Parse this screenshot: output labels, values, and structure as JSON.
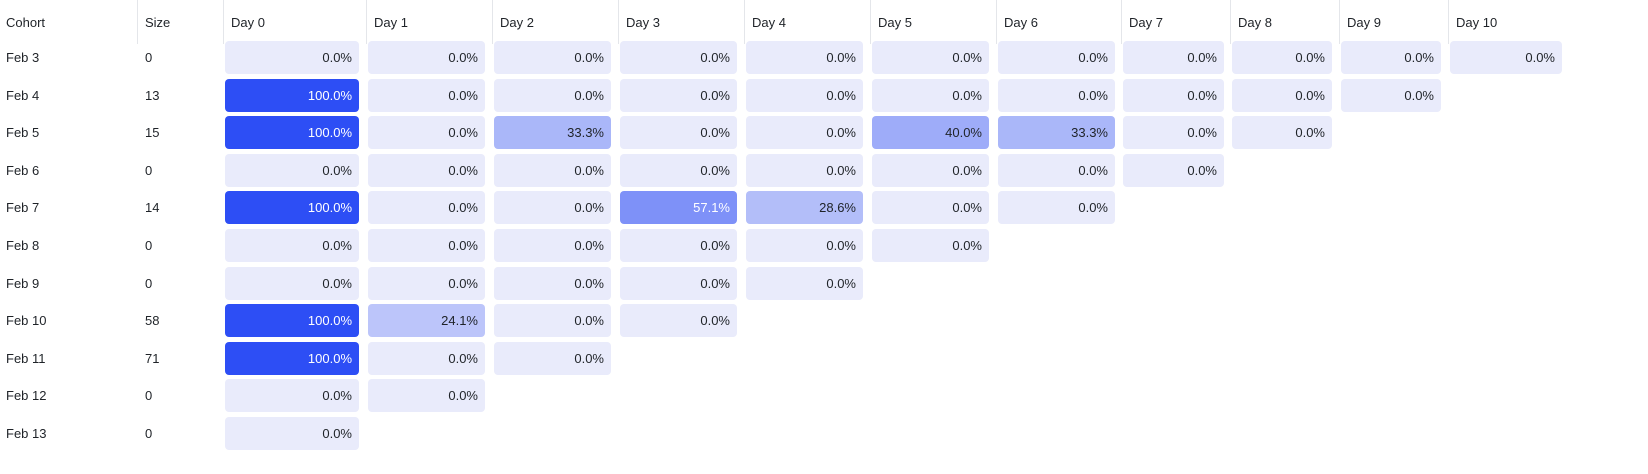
{
  "columns": [
    "Cohort",
    "Size",
    "Day 0",
    "Day 1",
    "Day 2",
    "Day 3",
    "Day 4",
    "Day 5",
    "Day 6",
    "Day 7",
    "Day 8",
    "Day 9",
    "Day 10"
  ],
  "rows": [
    {
      "cohort": "Feb 3",
      "size": "0",
      "values": [
        "0.0%",
        "0.0%",
        "0.0%",
        "0.0%",
        "0.0%",
        "0.0%",
        "0.0%",
        "0.0%",
        "0.0%",
        "0.0%",
        "0.0%"
      ]
    },
    {
      "cohort": "Feb 4",
      "size": "13",
      "values": [
        "100.0%",
        "0.0%",
        "0.0%",
        "0.0%",
        "0.0%",
        "0.0%",
        "0.0%",
        "0.0%",
        "0.0%",
        "0.0%"
      ]
    },
    {
      "cohort": "Feb 5",
      "size": "15",
      "values": [
        "100.0%",
        "0.0%",
        "33.3%",
        "0.0%",
        "0.0%",
        "40.0%",
        "33.3%",
        "0.0%",
        "0.0%"
      ]
    },
    {
      "cohort": "Feb 6",
      "size": "0",
      "values": [
        "0.0%",
        "0.0%",
        "0.0%",
        "0.0%",
        "0.0%",
        "0.0%",
        "0.0%",
        "0.0%"
      ]
    },
    {
      "cohort": "Feb 7",
      "size": "14",
      "values": [
        "100.0%",
        "0.0%",
        "0.0%",
        "57.1%",
        "28.6%",
        "0.0%",
        "0.0%"
      ]
    },
    {
      "cohort": "Feb 8",
      "size": "0",
      "values": [
        "0.0%",
        "0.0%",
        "0.0%",
        "0.0%",
        "0.0%",
        "0.0%"
      ]
    },
    {
      "cohort": "Feb 9",
      "size": "0",
      "values": [
        "0.0%",
        "0.0%",
        "0.0%",
        "0.0%",
        "0.0%"
      ]
    },
    {
      "cohort": "Feb 10",
      "size": "58",
      "values": [
        "100.0%",
        "24.1%",
        "0.0%",
        "0.0%"
      ]
    },
    {
      "cohort": "Feb 11",
      "size": "71",
      "values": [
        "100.0%",
        "0.0%",
        "0.0%"
      ]
    },
    {
      "cohort": "Feb 12",
      "size": "0",
      "values": [
        "0.0%",
        "0.0%"
      ]
    },
    {
      "cohort": "Feb 13",
      "size": "0",
      "values": [
        "0.0%"
      ]
    }
  ],
  "colors": {
    "empty_cell": "#e9ebfb",
    "full_cell": "#2d4ef5",
    "text_dark": "#1f2328",
    "text_light": "#ffffff"
  }
}
